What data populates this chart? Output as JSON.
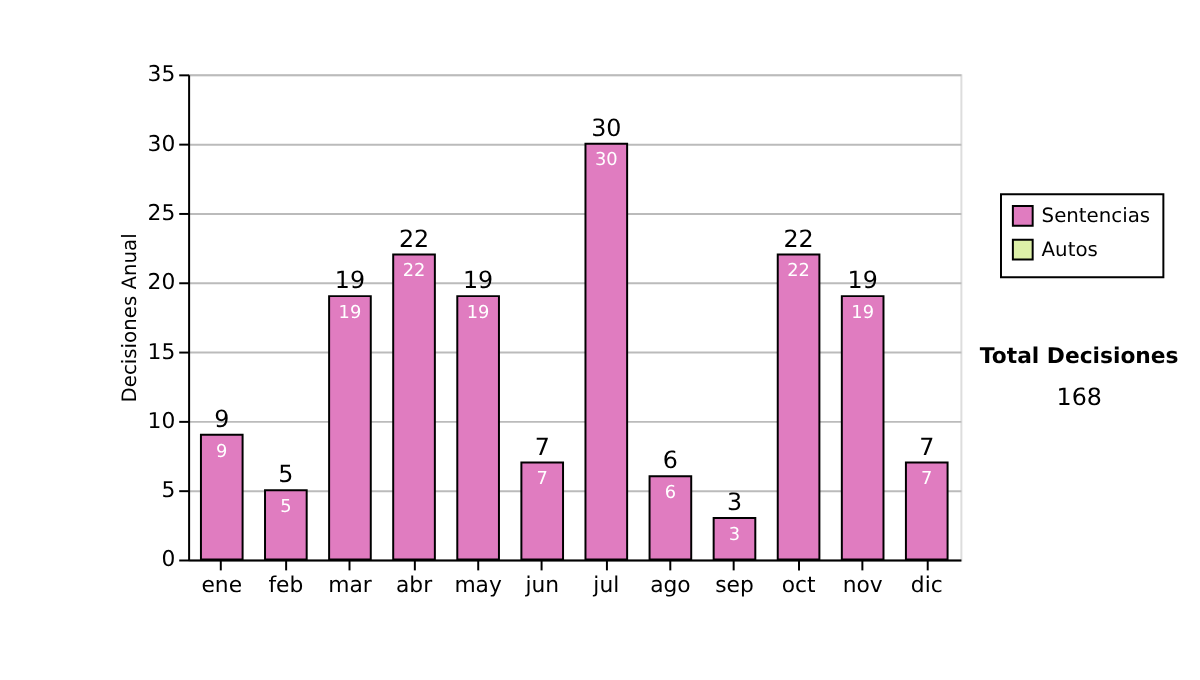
{
  "chart_data": {
    "type": "bar",
    "ylabel": "Decisiones Anual",
    "categories": [
      "ene",
      "feb",
      "mar",
      "abr",
      "may",
      "jun",
      "jul",
      "ago",
      "sep",
      "oct",
      "nov",
      "dic"
    ],
    "series": [
      {
        "name": "Sentencias",
        "color": "#e07cc0",
        "values": [
          9,
          5,
          19,
          22,
          19,
          7,
          30,
          6,
          3,
          22,
          19,
          7
        ]
      },
      {
        "name": "Autos",
        "color": "#ddf0a8",
        "values": [
          null,
          null,
          null,
          null,
          null,
          null,
          null,
          null,
          null,
          null,
          null,
          null
        ]
      }
    ],
    "stacked": true,
    "data_labels": true,
    "totals": [
      "9",
      "5",
      "19",
      "22",
      "19",
      "7",
      "30",
      "6",
      "3",
      "22",
      "19",
      "7"
    ],
    "ylim": [
      0,
      35
    ],
    "yticks": [
      0,
      5,
      10,
      15,
      20,
      25,
      30,
      35
    ],
    "grid": "y",
    "legend": "right",
    "annotations": [
      "Total Decisiones",
      "168"
    ]
  }
}
